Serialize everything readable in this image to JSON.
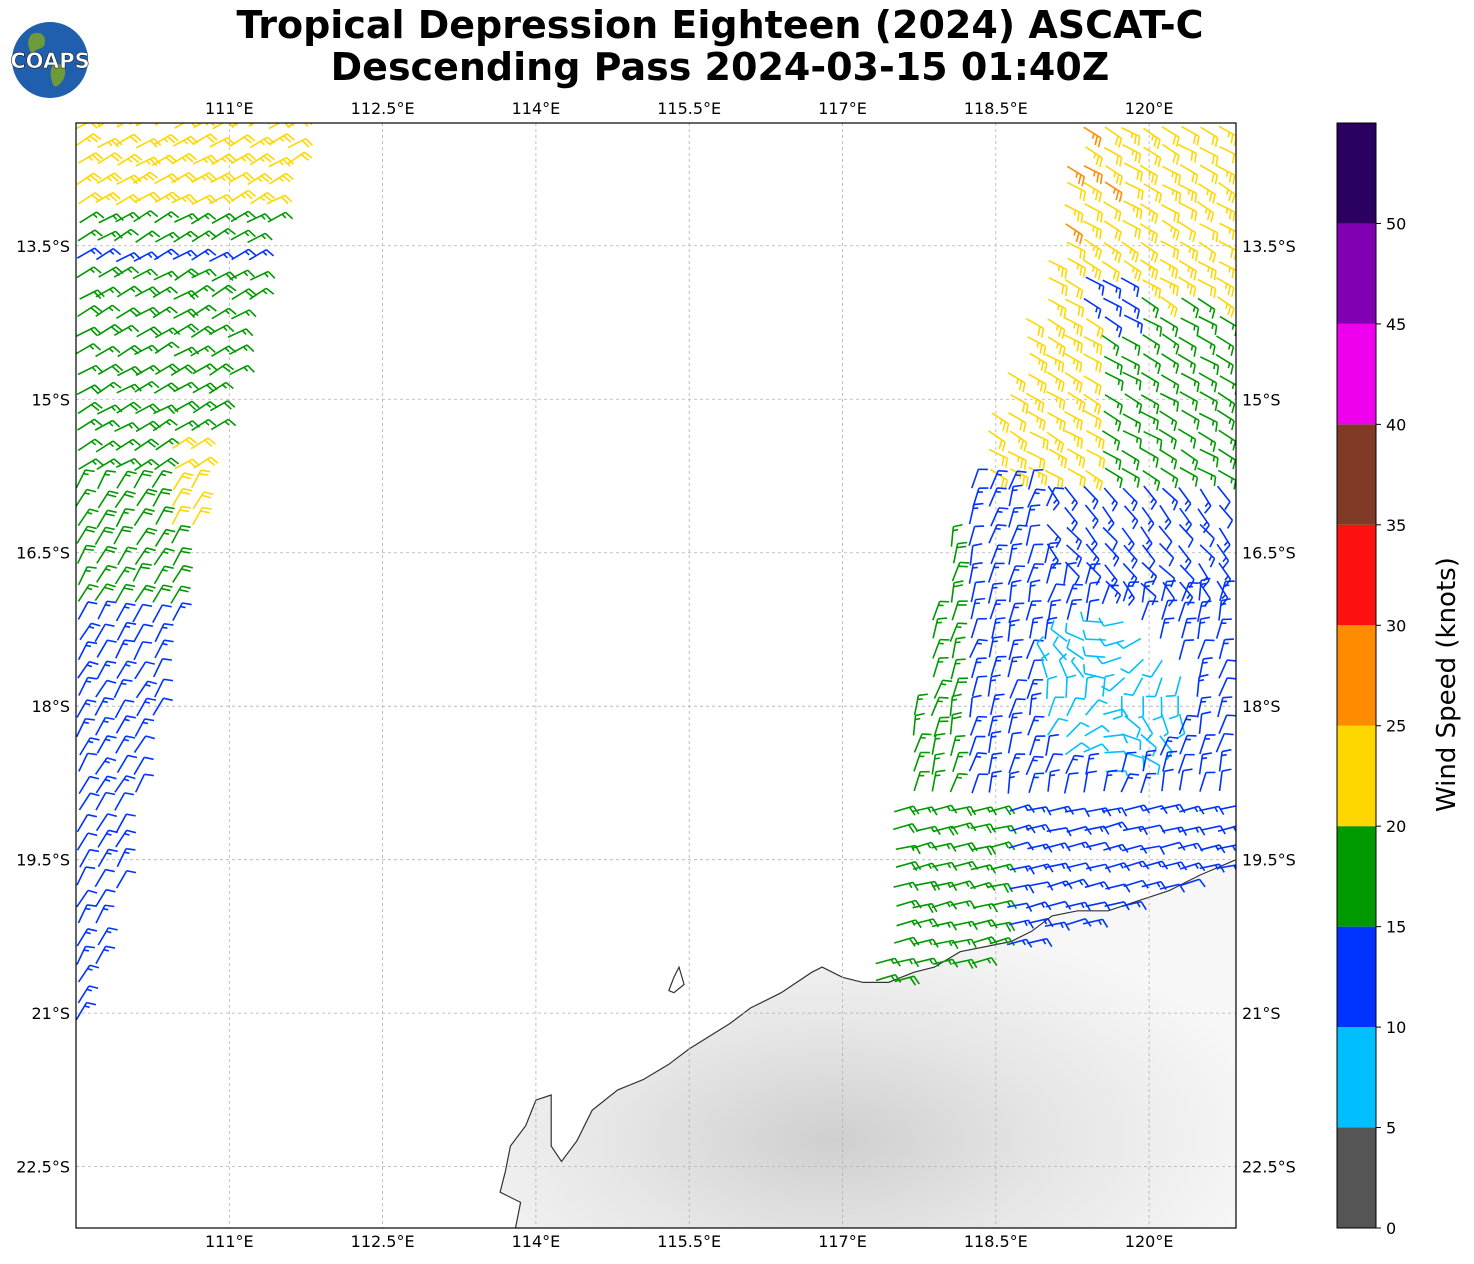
{
  "title": {
    "line1": "Tropical Depression Eighteen (2024) ASCAT-C",
    "line2": "Descending Pass 2024-03-15 01:40Z"
  },
  "logo": {
    "text": "COAPS"
  },
  "map": {
    "lon_range": [
      109.5,
      120.85
    ],
    "lat_range": [
      -23.1,
      -12.3
    ],
    "lon_ticks": [
      {
        "value": 111,
        "label": "111°E"
      },
      {
        "value": 112.5,
        "label": "112.5°E"
      },
      {
        "value": 114,
        "label": "114°E"
      },
      {
        "value": 115.5,
        "label": "115.5°E"
      },
      {
        "value": 117,
        "label": "117°E"
      },
      {
        "value": 118.5,
        "label": "118.5°E"
      },
      {
        "value": 120,
        "label": "120°E"
      }
    ],
    "lat_ticks": [
      {
        "value": -13.5,
        "label": "13.5°S"
      },
      {
        "value": -15,
        "label": "15°S"
      },
      {
        "value": -16.5,
        "label": "16.5°S"
      },
      {
        "value": -18,
        "label": "18°S"
      },
      {
        "value": -19.5,
        "label": "19.5°S"
      },
      {
        "value": -21,
        "label": "21°S"
      },
      {
        "value": -22.5,
        "label": "22.5°S"
      }
    ],
    "coastline": [
      [
        113.8,
        -23.1
      ],
      [
        113.85,
        -22.85
      ],
      [
        113.65,
        -22.75
      ],
      [
        113.7,
        -22.55
      ],
      [
        113.75,
        -22.3
      ],
      [
        113.9,
        -22.1
      ],
      [
        114.0,
        -21.85
      ],
      [
        114.15,
        -21.8
      ],
      [
        114.15,
        -22.05
      ],
      [
        114.15,
        -22.3
      ],
      [
        114.25,
        -22.45
      ],
      [
        114.4,
        -22.25
      ],
      [
        114.55,
        -21.95
      ],
      [
        114.8,
        -21.75
      ],
      [
        115.05,
        -21.65
      ],
      [
        115.3,
        -21.5
      ],
      [
        115.5,
        -21.35
      ],
      [
        115.9,
        -21.1
      ],
      [
        116.1,
        -20.95
      ],
      [
        116.4,
        -20.8
      ],
      [
        116.7,
        -20.6
      ],
      [
        116.8,
        -20.55
      ],
      [
        117.0,
        -20.65
      ],
      [
        117.2,
        -20.7
      ],
      [
        117.45,
        -20.7
      ],
      [
        117.7,
        -20.6
      ],
      [
        117.9,
        -20.55
      ],
      [
        118.15,
        -20.4
      ],
      [
        118.4,
        -20.35
      ],
      [
        118.65,
        -20.3
      ],
      [
        118.85,
        -20.2
      ],
      [
        119.05,
        -20.05
      ],
      [
        119.3,
        -20.0
      ],
      [
        119.6,
        -20.0
      ],
      [
        119.9,
        -19.9
      ],
      [
        120.2,
        -19.8
      ],
      [
        120.5,
        -19.65
      ],
      [
        120.85,
        -19.5
      ]
    ],
    "island": [
      [
        115.35,
        -20.65
      ],
      [
        115.4,
        -20.55
      ],
      [
        115.45,
        -20.72
      ],
      [
        115.35,
        -20.8
      ],
      [
        115.3,
        -20.78
      ]
    ],
    "left_swath": [
      [
        109.5,
        -12.3
      ],
      [
        111.35,
        -12.3
      ],
      [
        111.7,
        -12.3
      ],
      [
        110.8,
        -15.5
      ],
      [
        110.2,
        -18.5
      ],
      [
        109.6,
        -21.1
      ],
      [
        109.5,
        -21.2
      ]
    ],
    "right_swath": [
      [
        119.3,
        -12.3
      ],
      [
        120.8,
        -12.3
      ],
      [
        120.85,
        -12.3
      ],
      [
        120.85,
        -19.55
      ],
      [
        118.6,
        -20.45
      ],
      [
        117.3,
        -20.75
      ],
      [
        117.4,
        -19.5
      ],
      [
        118.0,
        -16.5
      ],
      [
        119.0,
        -13.5
      ]
    ],
    "wind_speed_samples": [
      {
        "region": "left swath north edge",
        "speed_kt": 22
      },
      {
        "region": "left swath central",
        "speed_kt": 17
      },
      {
        "region": "left swath south",
        "speed_kt": 12
      },
      {
        "region": "right swath north",
        "speed_kt": 22
      },
      {
        "region": "right swath center low",
        "speed_kt": 8
      },
      {
        "region": "right swath south coast",
        "speed_kt": 14
      }
    ]
  },
  "colorbar": {
    "label": "Wind Speed (knots)",
    "ticks": [
      "0",
      "5",
      "10",
      "15",
      "20",
      "25",
      "30",
      "35",
      "40",
      "45",
      "50"
    ],
    "bands": [
      {
        "from": 0,
        "to": 5,
        "color": "#555555"
      },
      {
        "from": 5,
        "to": 10,
        "color": "#00bfff"
      },
      {
        "from": 10,
        "to": 15,
        "color": "#0033ff"
      },
      {
        "from": 15,
        "to": 20,
        "color": "#009900"
      },
      {
        "from": 20,
        "to": 25,
        "color": "#ffd700"
      },
      {
        "from": 25,
        "to": 30,
        "color": "#ff8c00"
      },
      {
        "from": 30,
        "to": 35,
        "color": "#ff1010"
      },
      {
        "from": 35,
        "to": 40,
        "color": "#803a25"
      },
      {
        "from": 40,
        "to": 45,
        "color": "#ee00ee"
      },
      {
        "from": 45,
        "to": 50,
        "color": "#8000b3"
      },
      {
        "from": 50,
        "to": 55,
        "color": "#2a0060"
      }
    ]
  }
}
